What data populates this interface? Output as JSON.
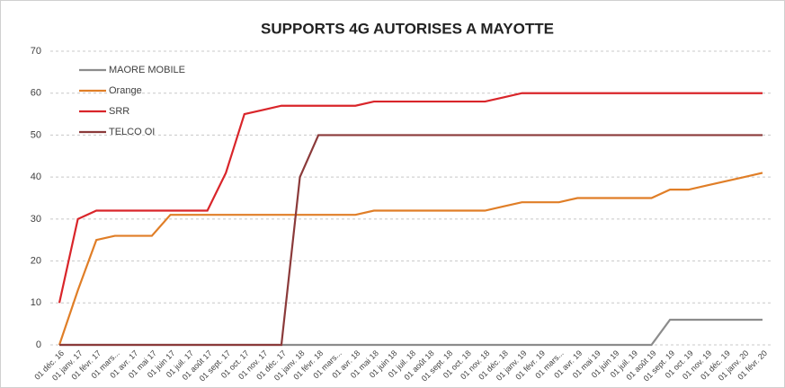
{
  "chart_data": {
    "type": "line",
    "title": "SUPPORTS 4G AUTORISES A MAYOTTE",
    "categories": [
      "01 déc. 16",
      "01 janv. 17",
      "01 févr. 17",
      "01 mars...",
      "01 avr. 17",
      "01 mai 17",
      "01 juin 17",
      "01 juil. 17",
      "01 août 17",
      "01 sept. 17",
      "01 oct. 17",
      "01 nov. 17",
      "01 déc. 17",
      "01 janv. 18",
      "01 févr. 18",
      "01 mars...",
      "01 avr. 18",
      "01 mai 18",
      "01 juin 18",
      "01 juil. 18",
      "01 août 18",
      "01 sept. 18",
      "01 oct. 18",
      "01 nov. 18",
      "01 déc. 18",
      "01 janv. 19",
      "01 févr. 19",
      "01 mars...",
      "01 avr. 19",
      "01 mai 19",
      "01 juin 19",
      "01 juil. 19",
      "01 août 19",
      "01 sept. 19",
      "01 oct. 19",
      "01 nov. 19",
      "01 déc. 19",
      "01 janv. 20",
      "01 févr. 20"
    ],
    "series": [
      {
        "name": "MAORE MOBILE",
        "color": "#8c8c8c",
        "values": [
          0,
          0,
          0,
          0,
          0,
          0,
          0,
          0,
          0,
          0,
          0,
          0,
          0,
          0,
          0,
          0,
          0,
          0,
          0,
          0,
          0,
          0,
          0,
          0,
          0,
          0,
          0,
          0,
          0,
          0,
          0,
          0,
          0,
          6,
          6,
          6,
          6,
          6,
          6
        ]
      },
      {
        "name": "Orange",
        "color": "#e07e27",
        "values": [
          0,
          13,
          25,
          26,
          26,
          26,
          31,
          31,
          31,
          31,
          31,
          31,
          31,
          31,
          31,
          31,
          31,
          32,
          32,
          32,
          32,
          32,
          32,
          32,
          33,
          34,
          34,
          34,
          35,
          35,
          35,
          35,
          35,
          37,
          37,
          38,
          39,
          40,
          41
        ]
      },
      {
        "name": "SRR",
        "color": "#d9252a",
        "values": [
          10,
          30,
          32,
          32,
          32,
          32,
          32,
          32,
          32,
          41,
          55,
          56,
          57,
          57,
          57,
          57,
          57,
          58,
          58,
          58,
          58,
          58,
          58,
          58,
          59,
          60,
          60,
          60,
          60,
          60,
          60,
          60,
          60,
          60,
          60,
          60,
          60,
          60,
          60
        ]
      },
      {
        "name": "TELCO OI",
        "color": "#8b3a3a",
        "values": [
          0,
          0,
          0,
          0,
          0,
          0,
          0,
          0,
          0,
          0,
          0,
          0,
          0,
          40,
          50,
          50,
          50,
          50,
          50,
          50,
          50,
          50,
          50,
          50,
          50,
          50,
          50,
          50,
          50,
          50,
          50,
          50,
          50,
          50,
          50,
          50,
          50,
          50,
          50
        ]
      }
    ],
    "ylim": [
      0,
      70
    ],
    "yticks": [
      0,
      10,
      20,
      30,
      40,
      50,
      60,
      70
    ],
    "grid": true,
    "legend": "top-left"
  }
}
